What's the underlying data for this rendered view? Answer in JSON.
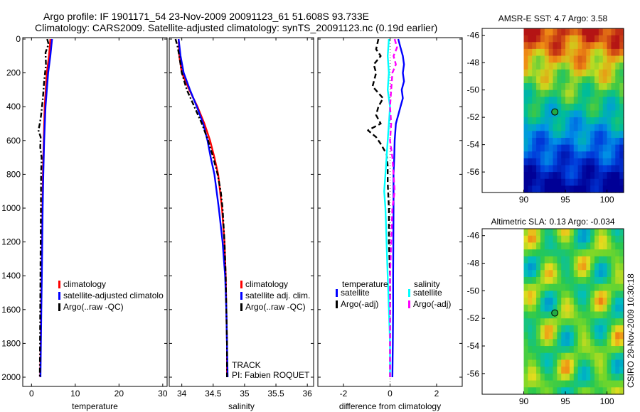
{
  "header": {
    "line1": "Argo profile: IF 1901171_54 23-Nov-2009 20091123_61 51.608S 93.733E",
    "line2": "Climatology: CARS2009. Satellite-adjusted climatology: synTS_20091123.nc (0.19d earlier)"
  },
  "colors": {
    "climatology": "#ff0000",
    "satellite": "#0000ff",
    "argo": "#000000",
    "sat_salinity": "#00ffff",
    "argo_salinity": "#ff00ff"
  },
  "chart_data": [
    {
      "type": "line",
      "id": "temperature",
      "xlabel": "temperature",
      "xlim": [
        -2,
        31
      ],
      "ylim": [
        2050,
        -20
      ],
      "xticks": [
        0,
        10,
        20,
        30
      ],
      "yticks": [
        0,
        200,
        400,
        600,
        800,
        1000,
        1200,
        1400,
        1600,
        1800,
        2000
      ],
      "legend": [
        "climatology",
        "satellite-adjusted climatolo",
        "Argo(..raw -QC)"
      ],
      "series": [
        {
          "name": "climatology",
          "color": "#ff0000",
          "style": "solid",
          "depth": [
            0,
            100,
            200,
            400,
            600,
            800,
            1000,
            1200,
            1400,
            1600,
            1800,
            2000
          ],
          "values": [
            4.3,
            4.0,
            3.5,
            3.0,
            2.8,
            2.6,
            2.5,
            2.4,
            2.3,
            2.2,
            2.1,
            2.0
          ]
        },
        {
          "name": "satellite-adjusted climatology",
          "color": "#0000ff",
          "style": "solid",
          "depth": [
            0,
            100,
            200,
            400,
            600,
            800,
            1000,
            1200,
            1400,
            1600,
            1800,
            2000
          ],
          "values": [
            4.7,
            4.3,
            3.8,
            3.2,
            2.9,
            2.7,
            2.55,
            2.45,
            2.35,
            2.25,
            2.15,
            2.05
          ]
        },
        {
          "name": "Argo(..raw -QC)",
          "color": "#000000",
          "style": "dashdot",
          "depth": [
            0,
            30,
            80,
            150,
            250,
            350,
            450,
            500,
            540,
            580,
            640,
            700,
            800,
            1000,
            1200,
            1400,
            1600,
            1800,
            2000
          ],
          "values": [
            3.6,
            3.9,
            3.2,
            3.3,
            2.9,
            2.6,
            2.2,
            1.9,
            1.6,
            2.1,
            2.0,
            2.3,
            2.2,
            2.15,
            2.1,
            2.05,
            2.0,
            1.95,
            1.9
          ]
        }
      ]
    },
    {
      "type": "line",
      "id": "salinity",
      "xlabel": "salinity",
      "xlim": [
        33.8,
        36.1
      ],
      "ylim": [
        2050,
        -20
      ],
      "xticks": [
        34,
        34.5,
        35,
        35.5,
        36
      ],
      "xticklabels": [
        "34",
        "34.5",
        "35",
        "35.5",
        "36"
      ],
      "legend": [
        "climatology",
        "satellite adj. clim.",
        "Argo(..raw -QC)"
      ],
      "annotations": [
        "TRACK",
        "PI: Fabien ROQUET"
      ],
      "series": [
        {
          "name": "climatology",
          "color": "#ff0000",
          "style": "solid",
          "depth": [
            0,
            100,
            200,
            300,
            400,
            500,
            600,
            700,
            800,
            1000,
            1200,
            1400,
            1600,
            1800,
            2000
          ],
          "values": [
            33.95,
            33.96,
            34.0,
            34.12,
            34.25,
            34.36,
            34.45,
            34.52,
            34.58,
            34.64,
            34.68,
            34.7,
            34.71,
            34.72,
            34.72
          ]
        },
        {
          "name": "satellite adj. clim.",
          "color": "#0000ff",
          "style": "solid",
          "depth": [
            0,
            100,
            200,
            300,
            400,
            500,
            600,
            700,
            800,
            1000,
            1200,
            1400,
            1600,
            1800,
            2000
          ],
          "values": [
            33.95,
            33.98,
            34.03,
            34.13,
            34.24,
            34.34,
            34.41,
            34.46,
            34.52,
            34.59,
            34.65,
            34.69,
            34.71,
            34.72,
            34.73
          ]
        },
        {
          "name": "Argo(..raw -QC)",
          "color": "#000000",
          "style": "dashdot",
          "depth": [
            0,
            40,
            100,
            200,
            300,
            400,
            500,
            600,
            700,
            800,
            900,
            1000,
            1200,
            1400,
            1600,
            1800,
            2000
          ],
          "values": [
            33.9,
            33.93,
            33.96,
            34.0,
            34.08,
            34.2,
            34.32,
            34.42,
            34.5,
            34.57,
            34.62,
            34.65,
            34.68,
            34.7,
            34.71,
            34.72,
            34.72
          ]
        }
      ]
    },
    {
      "type": "line",
      "id": "difference",
      "xlabel": "difference from climatology",
      "xlim": [
        -3.1,
        3.1
      ],
      "ylim": [
        2050,
        -20
      ],
      "xticks": [
        -2,
        0,
        2
      ],
      "legend_temperature_title": "temperature",
      "legend_salinity_title": "salinity",
      "legend_temperature": [
        "satellite",
        "Argo(-adj)"
      ],
      "legend_salinity": [
        "satellite",
        "Argo(-adj)"
      ],
      "series": [
        {
          "name": "temperature satellite",
          "color": "#0000ff",
          "style": "solid",
          "depth": [
            0,
            50,
            100,
            150,
            200,
            250,
            300,
            350,
            400,
            450,
            500,
            600,
            700,
            800,
            1000,
            1200,
            1400,
            1600,
            1800,
            2000
          ],
          "values": [
            0.35,
            0.45,
            0.55,
            0.6,
            0.55,
            0.6,
            0.5,
            0.55,
            0.45,
            0.35,
            0.25,
            0.2,
            0.18,
            0.15,
            0.15,
            0.14,
            0.13,
            0.13,
            0.12,
            0.1
          ]
        },
        {
          "name": "temperature Argo(-adj)",
          "color": "#000000",
          "style": "dashed",
          "depth": [
            0,
            60,
            100,
            150,
            200,
            280,
            350,
            400,
            450,
            500,
            540,
            580,
            620,
            680,
            750,
            850,
            1000,
            1200,
            1400,
            1600,
            1800,
            2000
          ],
          "values": [
            -0.5,
            -0.6,
            -0.4,
            -0.7,
            -0.6,
            -0.75,
            -0.3,
            -0.5,
            -0.6,
            -0.4,
            -0.95,
            -0.6,
            -0.4,
            -0.15,
            -0.1,
            -0.1,
            -0.05,
            -0.05,
            0.0,
            0.0,
            0.0,
            0.0
          ]
        },
        {
          "name": "salinity satellite",
          "color": "#00ffff",
          "style": "solid",
          "depth": [
            0,
            100,
            200,
            300,
            400,
            500,
            600,
            700,
            800,
            900,
            1000,
            1200,
            1400,
            1600,
            1800,
            2000
          ],
          "values": [
            -0.05,
            -0.1,
            -0.05,
            -0.1,
            0.0,
            -0.05,
            -0.1,
            -0.15,
            -0.2,
            -0.25,
            -0.2,
            -0.15,
            -0.1,
            -0.05,
            0.0,
            0.0
          ]
        },
        {
          "name": "salinity Argo(-adj)",
          "color": "#ff00ff",
          "style": "dashed",
          "depth": [
            0,
            50,
            100,
            150,
            200,
            300,
            400,
            500,
            600,
            700,
            800,
            900,
            1000,
            1200,
            1400,
            1600,
            1800,
            2000
          ],
          "values": [
            0.2,
            0.3,
            0.15,
            0.25,
            0.1,
            0.05,
            0.0,
            0.05,
            0.0,
            0.1,
            0.15,
            0.2,
            0.1,
            0.05,
            0.0,
            0.0,
            0.0,
            0.0
          ]
        }
      ]
    },
    {
      "type": "heatmap",
      "id": "sst",
      "title": "AMSR-E SST: 4.7 Argo: 3.58",
      "xlim": [
        85,
        102
      ],
      "ylim": [
        -57.5,
        -45.5
      ],
      "xticks": [
        90,
        95,
        100
      ],
      "yticks": [
        -46,
        -48,
        -50,
        -52,
        -54,
        -56
      ],
      "data_xlim": [
        90,
        102
      ],
      "marker": {
        "lon": 93.733,
        "lat": -51.608
      }
    },
    {
      "type": "heatmap",
      "id": "sla",
      "title": "Altimetric SLA: 0.13 Argo: -0.034",
      "xlim": [
        85,
        102
      ],
      "ylim": [
        -57.5,
        -45.5
      ],
      "xticks": [
        90,
        95,
        100
      ],
      "yticks": [
        -46,
        -48,
        -50,
        -52,
        -54,
        -56
      ],
      "data_xlim": [
        90,
        102
      ],
      "marker": {
        "lon": 93.733,
        "lat": -51.608
      }
    }
  ],
  "footer": {
    "stamp": "CSIRO 29-Nov-2009 10:30:18"
  }
}
